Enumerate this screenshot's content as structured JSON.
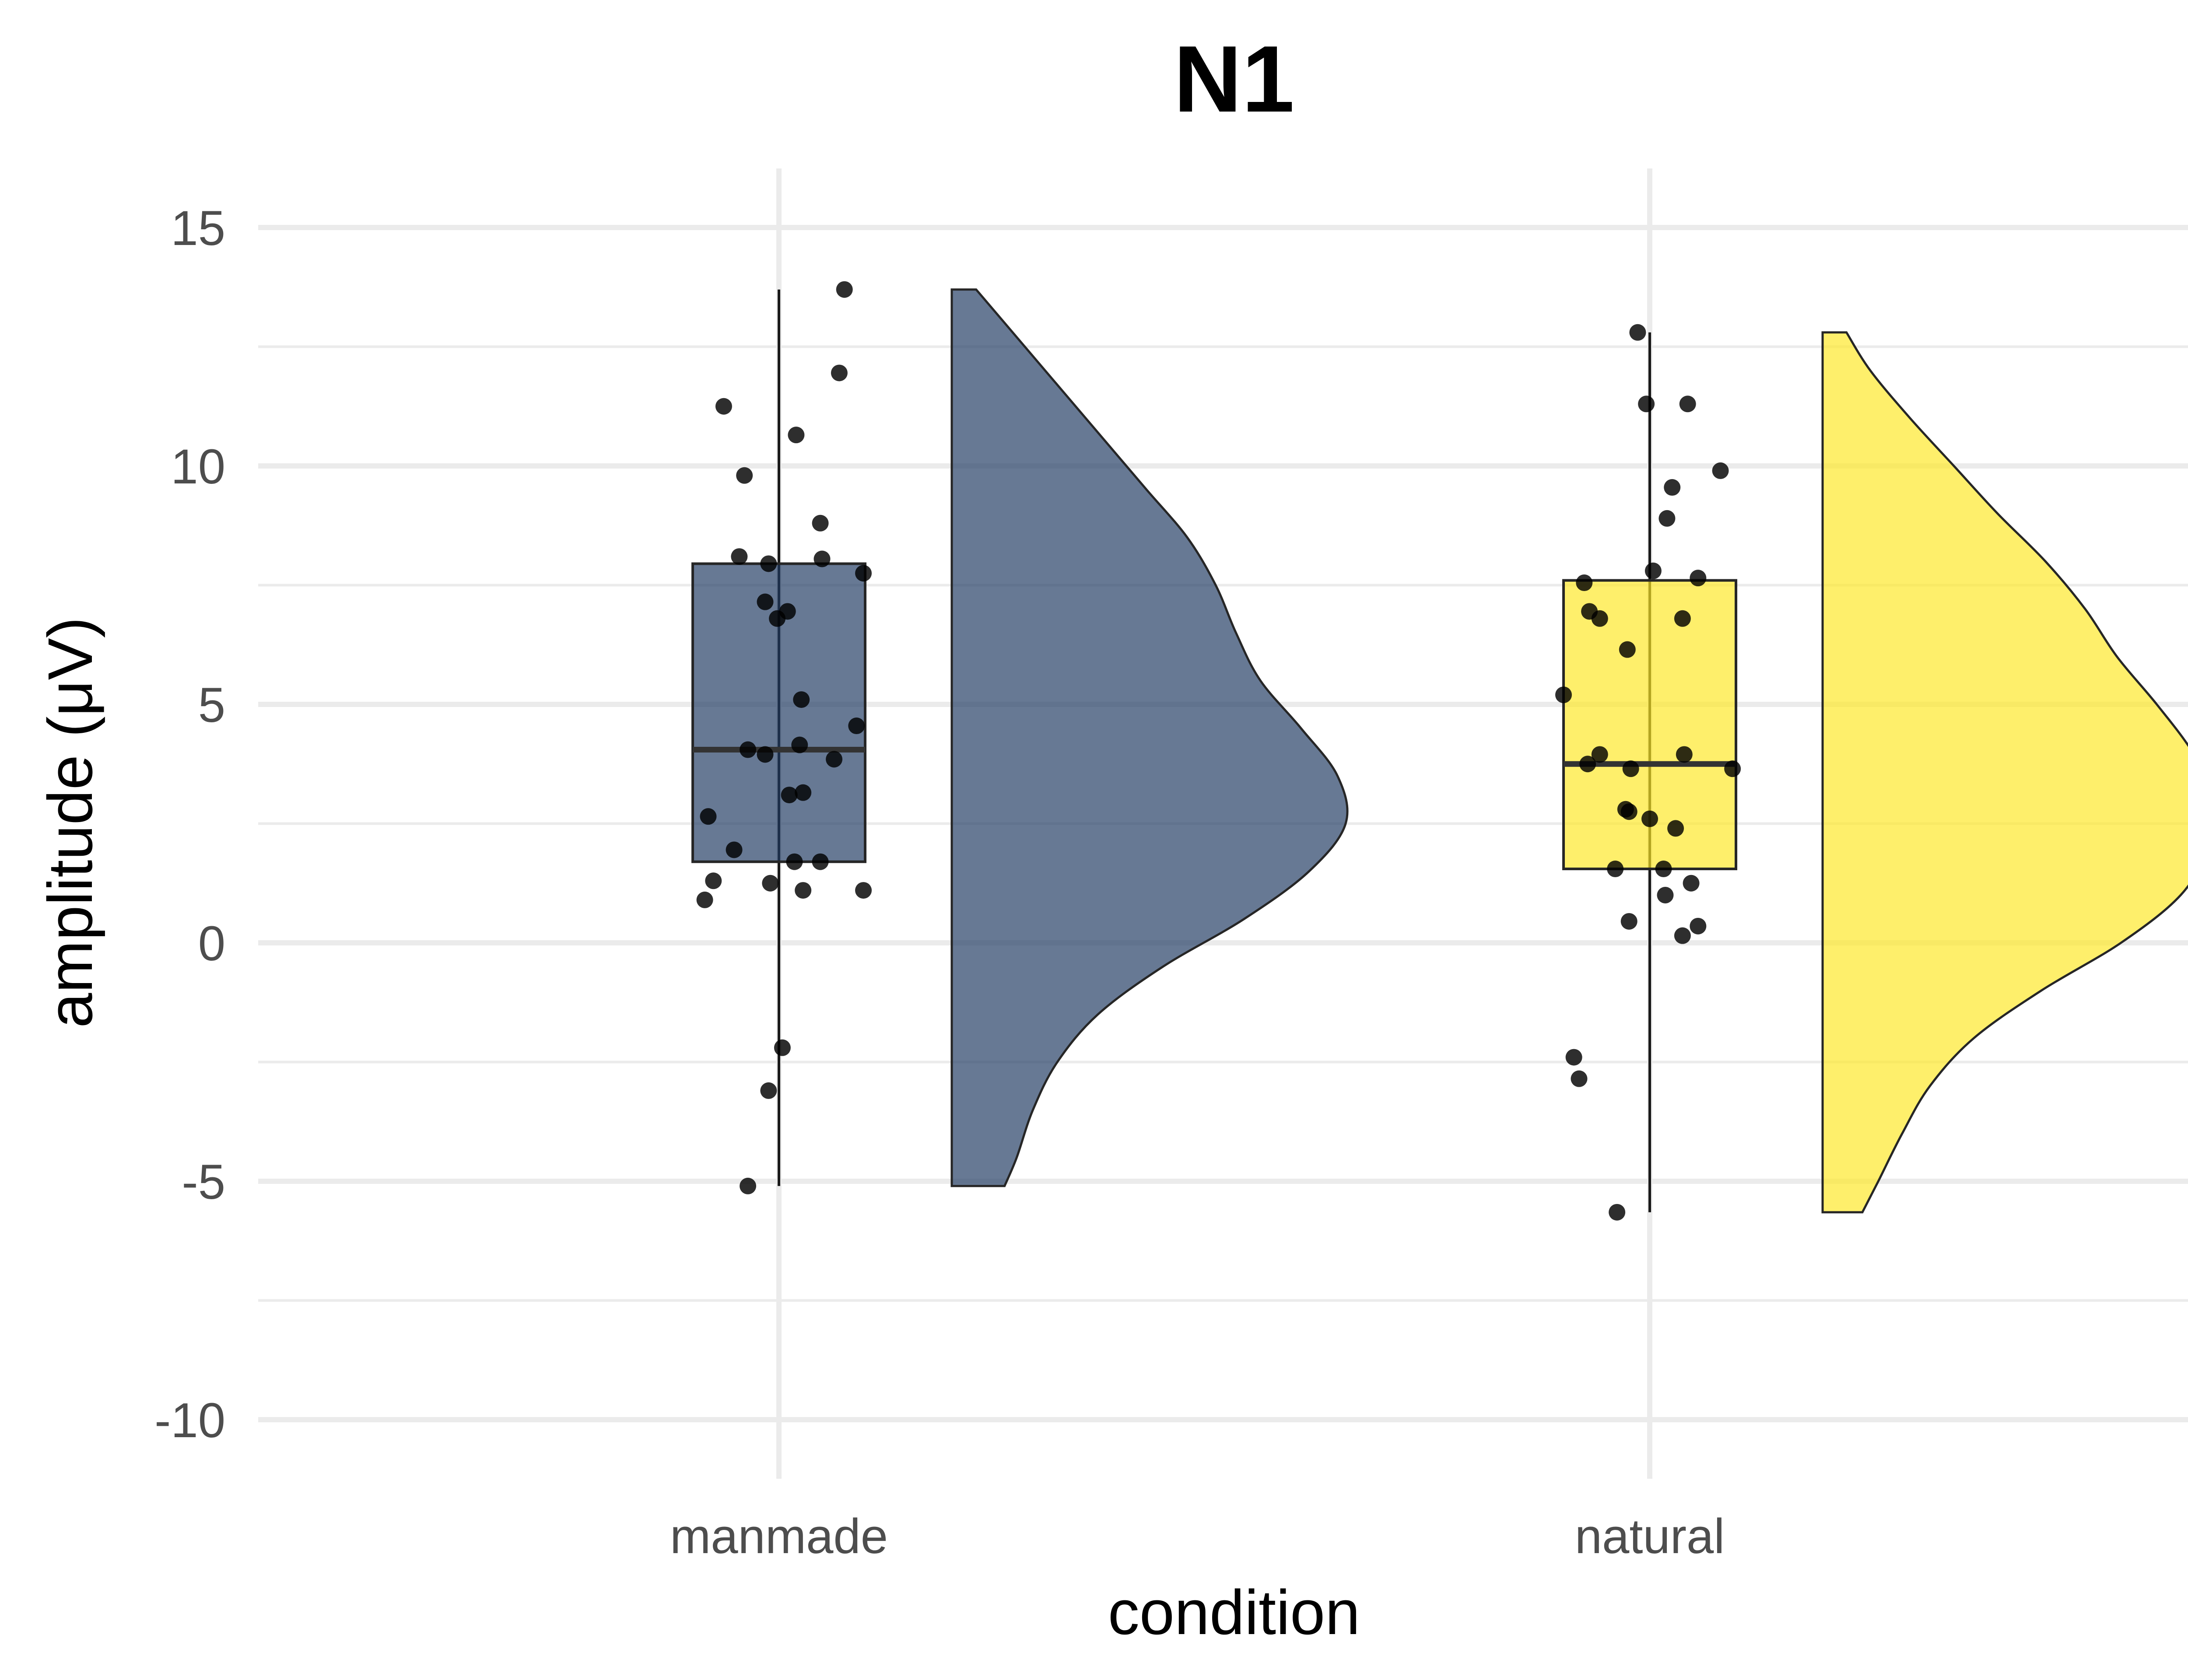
{
  "chart_data": {
    "type": "raincloud",
    "title": "N1",
    "xlabel": "condition",
    "ylabel": "amplitude (μV)",
    "ylim": [
      -12,
      16
    ],
    "yticks": [
      15,
      10,
      5,
      0,
      -5,
      -10
    ],
    "ytick_labels": [
      "15",
      "10",
      "5",
      "0",
      "-5",
      "-10"
    ],
    "categories": [
      "manmade",
      "natural"
    ],
    "grid": true,
    "legend": "none",
    "series": [
      {
        "category": "manmade",
        "color": "#1F3A62",
        "box": {
          "min": -5.1,
          "q1": 1.7,
          "median": 4.05,
          "q3": 7.95,
          "max": 13.7
        },
        "density": {
          "y": [
            -5.1,
            -4.5,
            -3.5,
            -2.5,
            -1.5,
            -0.5,
            0.5,
            1.5,
            2.5,
            3.5,
            4.5,
            5.5,
            6.5,
            7.5,
            8.5,
            9.5,
            10.5,
            11.5,
            12.5,
            13.7
          ],
          "d": [
            0.13,
            0.16,
            0.2,
            0.26,
            0.36,
            0.52,
            0.72,
            0.88,
            0.97,
            0.95,
            0.86,
            0.76,
            0.7,
            0.65,
            0.58,
            0.48,
            0.38,
            0.28,
            0.18,
            0.06
          ]
        },
        "points": [
          {
            "dx": 0.38,
            "y": 13.7
          },
          {
            "dx": 0.35,
            "y": 11.95
          },
          {
            "dx": -0.32,
            "y": 11.25
          },
          {
            "dx": 0.1,
            "y": 10.65
          },
          {
            "dx": -0.2,
            "y": 9.8
          },
          {
            "dx": 0.24,
            "y": 8.8
          },
          {
            "dx": -0.23,
            "y": 8.1
          },
          {
            "dx": -0.06,
            "y": 7.95
          },
          {
            "dx": 0.25,
            "y": 8.05
          },
          {
            "dx": 0.49,
            "y": 7.75
          },
          {
            "dx": -0.08,
            "y": 7.15
          },
          {
            "dx": 0.05,
            "y": 6.95
          },
          {
            "dx": -0.01,
            "y": 6.8
          },
          {
            "dx": 0.13,
            "y": 5.1
          },
          {
            "dx": 0.45,
            "y": 4.55
          },
          {
            "dx": -0.18,
            "y": 4.05
          },
          {
            "dx": -0.08,
            "y": 3.95
          },
          {
            "dx": 0.12,
            "y": 4.15
          },
          {
            "dx": 0.32,
            "y": 3.85
          },
          {
            "dx": 0.06,
            "y": 3.1
          },
          {
            "dx": 0.14,
            "y": 3.15
          },
          {
            "dx": -0.41,
            "y": 2.65
          },
          {
            "dx": -0.26,
            "y": 1.95
          },
          {
            "dx": 0.09,
            "y": 1.7
          },
          {
            "dx": 0.24,
            "y": 1.7
          },
          {
            "dx": -0.38,
            "y": 1.3
          },
          {
            "dx": -0.05,
            "y": 1.25
          },
          {
            "dx": 0.14,
            "y": 1.1
          },
          {
            "dx": 0.49,
            "y": 1.1
          },
          {
            "dx": -0.43,
            "y": 0.9
          },
          {
            "dx": 0.02,
            "y": -2.2
          },
          {
            "dx": -0.06,
            "y": -3.1
          },
          {
            "dx": -0.18,
            "y": -5.1
          }
        ]
      },
      {
        "category": "natural",
        "color": "#FDE725",
        "box": {
          "min": -5.65,
          "q1": 1.55,
          "median": 3.75,
          "q3": 7.6,
          "max": 12.8
        },
        "density": {
          "y": [
            -5.65,
            -5.0,
            -4.0,
            -3.0,
            -2.0,
            -1.0,
            0.0,
            1.0,
            2.0,
            3.0,
            4.0,
            5.0,
            6.0,
            7.0,
            8.0,
            9.0,
            10.0,
            11.0,
            12.0,
            12.8
          ],
          "d": [
            0.1,
            0.14,
            0.2,
            0.27,
            0.38,
            0.55,
            0.75,
            0.9,
            0.97,
            0.99,
            0.93,
            0.84,
            0.74,
            0.66,
            0.56,
            0.44,
            0.33,
            0.22,
            0.12,
            0.06
          ]
        },
        "points": [
          {
            "dx": -0.07,
            "y": 12.8
          },
          {
            "dx": -0.02,
            "y": 11.3
          },
          {
            "dx": 0.22,
            "y": 11.3
          },
          {
            "dx": 0.41,
            "y": 9.9
          },
          {
            "dx": 0.13,
            "y": 9.55
          },
          {
            "dx": 0.1,
            "y": 8.9
          },
          {
            "dx": 0.02,
            "y": 7.8
          },
          {
            "dx": -0.38,
            "y": 7.55
          },
          {
            "dx": 0.28,
            "y": 7.65
          },
          {
            "dx": -0.35,
            "y": 6.95
          },
          {
            "dx": -0.29,
            "y": 6.8
          },
          {
            "dx": 0.19,
            "y": 6.8
          },
          {
            "dx": -0.13,
            "y": 6.15
          },
          {
            "dx": -0.5,
            "y": 5.2
          },
          {
            "dx": -0.29,
            "y": 3.95
          },
          {
            "dx": 0.2,
            "y": 3.95
          },
          {
            "dx": -0.36,
            "y": 3.75
          },
          {
            "dx": -0.11,
            "y": 3.65
          },
          {
            "dx": 0.48,
            "y": 3.65
          },
          {
            "dx": -0.14,
            "y": 2.8
          },
          {
            "dx": -0.12,
            "y": 2.75
          },
          {
            "dx": 0.0,
            "y": 2.6
          },
          {
            "dx": 0.15,
            "y": 2.4
          },
          {
            "dx": -0.2,
            "y": 1.55
          },
          {
            "dx": 0.08,
            "y": 1.55
          },
          {
            "dx": 0.24,
            "y": 1.25
          },
          {
            "dx": 0.09,
            "y": 1.0
          },
          {
            "dx": -0.12,
            "y": 0.45
          },
          {
            "dx": 0.28,
            "y": 0.35
          },
          {
            "dx": 0.19,
            "y": 0.15
          },
          {
            "dx": -0.44,
            "y": -2.4
          },
          {
            "dx": -0.41,
            "y": -2.85
          },
          {
            "dx": -0.19,
            "y": -5.65
          }
        ]
      }
    ]
  }
}
